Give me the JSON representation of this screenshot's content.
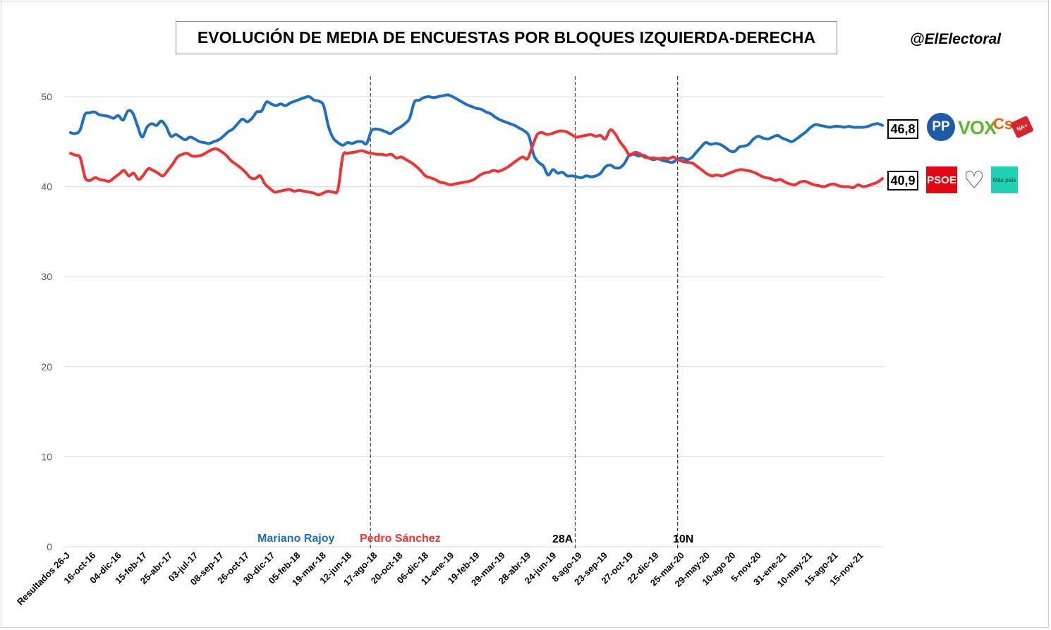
{
  "title": "EVOLUCIÓN DE MEDIA DE ENCUESTAS POR BLOQUES IZQUIERDA-DERECHA",
  "brand": "@ElElectoral",
  "colors": {
    "right_bloc": "#1f6fbf",
    "left_bloc": "#f03232"
  },
  "period_labels": {
    "rajoy": "Mariano Rajoy",
    "sanchez": "Pedro Sánchez",
    "election_28a": "28A",
    "election_10n": "10N"
  },
  "end_values": {
    "right": "46,8",
    "left": "40,9"
  },
  "logos": {
    "pp": "PP",
    "vox": "VOX",
    "cs": "Cs",
    "na": "NA+",
    "psoe": "PSOE",
    "podemos": "heart-icon",
    "mas_pais": "Más país"
  },
  "chart_data": {
    "type": "line",
    "title": "EVOLUCIÓN DE MEDIA DE ENCUESTAS POR BLOQUES IZQUIERDA-DERECHA",
    "xlabel": "",
    "ylabel": "",
    "ylim": [
      0,
      50
    ],
    "yticks": [
      0,
      10,
      20,
      30,
      40,
      50
    ],
    "grid": true,
    "x_ticks": [
      "Resultados 26-J",
      "16-oct-16",
      "04-dic-16",
      "15-feb-17",
      "25-abr-17",
      "03-jul-17",
      "08-sep-17",
      "26-oct-17",
      "30-dic-17",
      "05-feb-18",
      "19-mar-18",
      "12-jun-18",
      "17-ago-18",
      "20-oct-18",
      "06-dic-18",
      "11-ene-19",
      "19-feb-19",
      "29-mar-19",
      "28-abr-19",
      "24-jun-19",
      "8-ago-19",
      "23-sep-19",
      "27-oct-19",
      "22-dic-19",
      "25-mar-20",
      "29-may-20",
      "10-ago 20",
      "5-nov-20",
      "31-ene-21",
      "10-may-21",
      "15-ago-21",
      "15-nov-21"
    ],
    "vertical_markers": [
      "12-jun-18",
      "24-jun-19",
      "22-dic-19"
    ],
    "series": [
      {
        "name": "",
        "color": "#1f6fbf",
        "values": [
          46.0,
          45.9,
          46.3,
          48.0,
          48.2,
          48.3,
          48.0,
          47.9,
          47.8,
          47.6,
          47.9,
          47.4,
          48.4,
          48.2,
          46.8,
          45.5,
          46.6,
          47.0,
          46.8,
          47.3,
          46.7,
          45.6,
          45.8,
          45.5,
          45.2,
          45.5,
          45.3,
          45.0,
          44.9,
          44.8,
          45.0,
          45.2,
          45.6,
          46.1,
          46.4,
          47.0,
          47.5,
          47.2,
          47.6,
          48.3,
          48.4,
          49.4,
          49.2,
          49.0,
          49.2,
          49.0,
          49.3,
          49.5,
          49.7,
          49.9,
          50.0,
          49.6,
          49.5,
          49.0,
          46.7,
          45.4,
          44.9,
          44.6,
          44.9,
          44.8,
          45.0,
          45.0,
          44.8,
          46.2,
          46.4,
          46.3,
          46.1,
          45.9,
          46.3,
          46.6,
          47.0,
          47.6,
          49.4,
          49.6,
          49.9,
          50.0,
          49.9,
          50.0,
          50.1,
          50.2,
          50.0,
          49.7,
          49.4,
          49.1,
          48.9,
          48.7,
          48.6,
          48.3,
          48.1,
          47.7,
          47.4,
          47.2,
          47.0,
          46.8,
          46.5,
          46.2,
          45.6,
          43.5,
          42.7,
          42.3,
          41.3,
          41.9,
          41.5,
          41.6,
          41.2,
          41.2,
          41.1,
          41.0,
          41.2,
          41.1,
          41.2,
          41.5,
          42.2,
          42.4,
          42.1,
          42.1,
          42.6,
          43.5,
          43.6,
          43.4,
          43.5,
          43.2,
          43.0,
          43.1,
          42.9,
          42.8,
          42.7,
          43.0,
          43.2,
          43.0,
          43.2,
          43.8,
          44.4,
          44.9,
          44.7,
          44.8,
          44.7,
          44.4,
          44.0,
          43.9,
          44.4,
          44.5,
          44.7,
          45.3,
          45.6,
          45.4,
          45.3,
          45.5,
          45.7,
          45.4,
          45.2,
          45.0,
          45.3,
          45.7,
          46.1,
          46.6,
          46.9,
          46.8,
          46.7,
          46.6,
          46.7,
          46.7,
          46.6,
          46.7,
          46.6,
          46.6,
          46.6,
          46.7,
          46.9,
          47.0,
          46.8
        ]
      },
      {
        "name": "",
        "color": "#f03232",
        "values": [
          43.7,
          43.5,
          43.2,
          41.0,
          40.7,
          41.0,
          40.8,
          40.7,
          40.6,
          41.0,
          41.4,
          41.8,
          41.2,
          41.5,
          40.8,
          41.3,
          42.0,
          41.8,
          41.5,
          41.2,
          41.8,
          42.5,
          43.3,
          43.6,
          43.7,
          43.4,
          43.4,
          43.5,
          43.8,
          44.1,
          44.2,
          43.9,
          43.5,
          42.9,
          42.5,
          42.1,
          41.6,
          41.0,
          40.9,
          41.2,
          40.3,
          39.8,
          39.4,
          39.5,
          39.6,
          39.7,
          39.5,
          39.6,
          39.5,
          39.4,
          39.3,
          39.1,
          39.3,
          39.5,
          39.4,
          39.7,
          43.4,
          43.7,
          43.8,
          43.9,
          44.0,
          43.8,
          43.7,
          43.6,
          43.6,
          43.5,
          43.6,
          43.2,
          43.3,
          43.0,
          42.7,
          42.3,
          41.8,
          41.2,
          41.0,
          40.8,
          40.5,
          40.4,
          40.2,
          40.3,
          40.4,
          40.5,
          40.6,
          40.8,
          41.2,
          41.5,
          41.6,
          41.8,
          41.7,
          41.9,
          42.2,
          42.6,
          43.0,
          43.3,
          43.1,
          44.5,
          45.8,
          46.0,
          45.8,
          45.9,
          46.1,
          46.2,
          46.1,
          45.8,
          45.5,
          45.6,
          45.7,
          45.8,
          45.6,
          45.7,
          45.3,
          46.3,
          45.9,
          45.0,
          44.3,
          43.5,
          43.8,
          43.7,
          43.3,
          43.2,
          43.2,
          43.1,
          43.2,
          43.1,
          43.3,
          43.0,
          42.8,
          42.7,
          42.6,
          42.2,
          41.8,
          41.4,
          41.2,
          41.3,
          41.2,
          41.4,
          41.6,
          41.8,
          41.9,
          41.8,
          41.7,
          41.5,
          41.2,
          41.0,
          40.9,
          40.7,
          40.8,
          40.5,
          40.3,
          40.2,
          40.5,
          40.6,
          40.4,
          40.2,
          40.1,
          40.0,
          40.2,
          40.3,
          40.1,
          40.0,
          40.0,
          39.9,
          40.2,
          40.0,
          40.1,
          40.3,
          40.5,
          40.9
        ]
      }
    ]
  }
}
